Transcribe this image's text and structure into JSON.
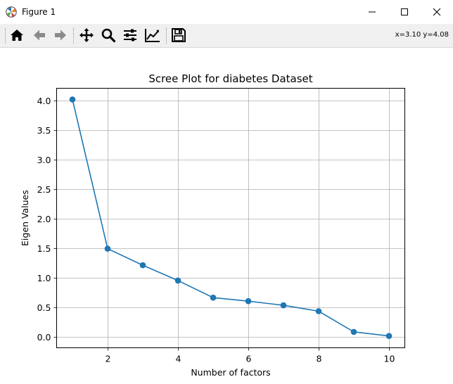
{
  "window": {
    "title": "Figure 1",
    "coords": "x=3.10 y=4.08"
  },
  "toolbar": {
    "tools": [
      "home-icon",
      "back-arrow-icon",
      "forward-arrow-icon",
      "pan-icon",
      "zoom-icon",
      "configure-subplots-icon",
      "edit-axis-icon",
      "save-icon"
    ]
  },
  "chart_data": {
    "type": "line",
    "title": "Scree Plot for diabetes Dataset",
    "xlabel": "Number of factors",
    "ylabel": "Eigen Values",
    "x": [
      1,
      2,
      3,
      4,
      5,
      6,
      7,
      8,
      9,
      10
    ],
    "values": [
      4.02,
      1.49,
      1.21,
      0.95,
      0.66,
      0.6,
      0.53,
      0.43,
      0.08,
      0.01
    ],
    "xlim": [
      0.55,
      10.45
    ],
    "ylim": [
      -0.19,
      4.21
    ],
    "xticks": [
      2,
      4,
      6,
      8,
      10
    ],
    "yticks": [
      0.0,
      0.5,
      1.0,
      1.5,
      2.0,
      2.5,
      3.0,
      3.5,
      4.0
    ],
    "grid": true,
    "color": "#1f77b4"
  }
}
